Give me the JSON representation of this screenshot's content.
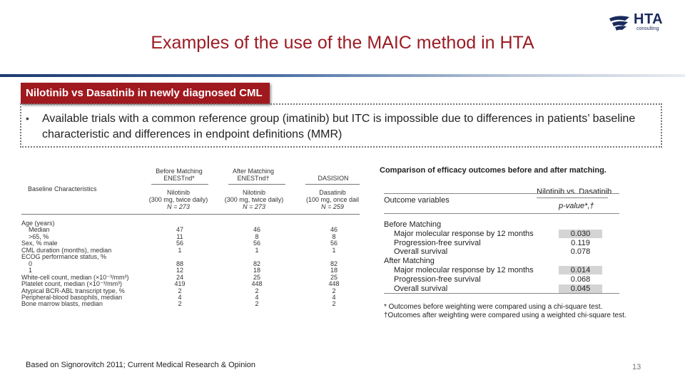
{
  "slide_title": "Examples of the use of the MAIC method in HTA",
  "logo": {
    "name": "HTA",
    "sub": "consulting"
  },
  "section_tag": "Nilotinib vs Dasatinib in newly diagnosed CML",
  "bullet": "Available trials with a common reference group (imatinib) but ITC is impossible due to differences in patients’ baseline characteristic and differences in endpoint definitions (MMR)",
  "baseline_table": {
    "group_headers": [
      {
        "line1": "Before Matching",
        "line2": "ENESTnd*"
      },
      {
        "line1": "After Matching",
        "line2": "ENESTnd†"
      },
      {
        "line1": "",
        "line2": "DASISION"
      }
    ],
    "row_header": "Baseline Characteristics",
    "columns": [
      {
        "drug": "Nilotinib",
        "dose": "(300 mg, twice daily)",
        "n": "N = 273"
      },
      {
        "drug": "Nilotinib",
        "dose": "(300 mg, twice daily)",
        "n": "N = 273"
      },
      {
        "drug": "Dasatinib",
        "dose": "(100 mg, once dail",
        "n": "N = 259"
      }
    ],
    "rows": [
      {
        "label": "Age (years)",
        "values": [
          "",
          "",
          ""
        ]
      },
      {
        "label": "    Median",
        "values": [
          "47",
          "46",
          "46"
        ]
      },
      {
        "label": "    >65, %",
        "values": [
          "11",
          "8",
          "8"
        ]
      },
      {
        "label": "Sex, % male",
        "values": [
          "56",
          "56",
          "56"
        ]
      },
      {
        "label": "CML duration (months), median",
        "values": [
          "1",
          "1",
          "1"
        ]
      },
      {
        "label": "ECOG performance status, %",
        "values": [
          "",
          "",
          ""
        ]
      },
      {
        "label": "    0",
        "values": [
          "88",
          "82",
          "82"
        ]
      },
      {
        "label": "    1",
        "values": [
          "12",
          "18",
          "18"
        ]
      },
      {
        "label": "White-cell count, median (×10⁻³/mm³)",
        "values": [
          "24",
          "25",
          "25"
        ]
      },
      {
        "label": "Platelet count, median (×10⁻³/mm³)",
        "values": [
          "419",
          "448",
          "448"
        ]
      },
      {
        "label": "Atypical BCR-ABL transcript type, %",
        "values": [
          "2",
          "2",
          "2"
        ]
      },
      {
        "label": "Peripheral-blood basophils, median",
        "values": [
          "4",
          "4",
          "4"
        ]
      },
      {
        "label": "Bone marrow blasts, median",
        "values": [
          "2",
          "2",
          "2"
        ]
      }
    ]
  },
  "outcome_table": {
    "caption": "Comparison of efficacy outcomes before and after matching.",
    "col_header_1": "Outcome variables",
    "col_header_2": "Nilotinib vs. Dasatinib",
    "col_sub": "p-value*,†",
    "groups": [
      {
        "title": "Before Matching",
        "rows": [
          {
            "label": "Major molecular response by 12 months",
            "p": "0.030",
            "shaded": true
          },
          {
            "label": "Progression-free survival",
            "p": "0.119",
            "shaded": false
          },
          {
            "label": "Overall survival",
            "p": "0.078",
            "shaded": false
          }
        ]
      },
      {
        "title": "After Matching",
        "rows": [
          {
            "label": "Major molecular response by 12 months",
            "p": "0.014",
            "shaded": true
          },
          {
            "label": "Progression-free survival",
            "p": "0.068",
            "shaded": false
          },
          {
            "label": "Overall survival",
            "p": "0.045",
            "shaded": true
          }
        ]
      }
    ],
    "footnotes": [
      "* Outcomes before weighting were compared using a chi-square test.",
      "†Outcomes after weighting were compared using a weighted chi-square test."
    ]
  },
  "source": "Based on Signorovitch 2011; Current Medical Research & Opinion",
  "page_number": "13"
}
